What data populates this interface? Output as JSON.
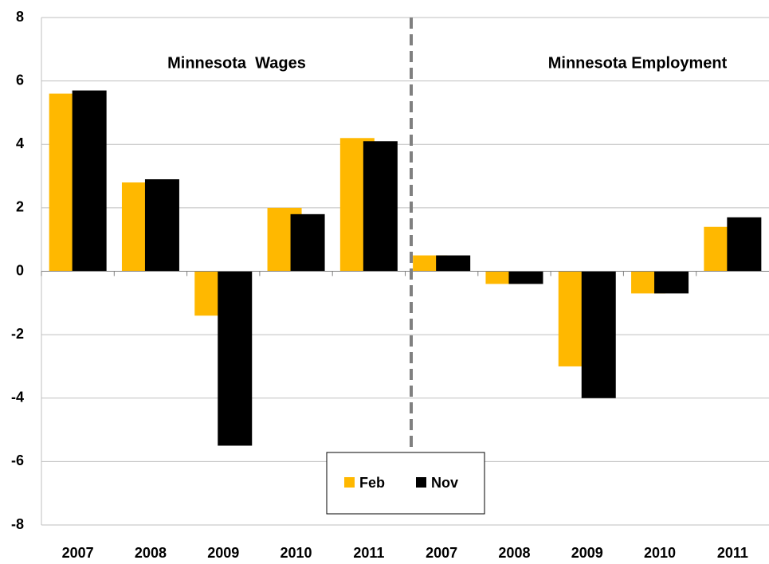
{
  "chart_data": {
    "type": "bar",
    "categories": [
      "2007",
      "2008",
      "2009",
      "2010",
      "2011",
      "2007",
      "2008",
      "2009",
      "2010",
      "2011"
    ],
    "series": [
      {
        "name": "Feb",
        "color": "#ffb800",
        "values": [
          5.6,
          2.8,
          -1.4,
          2.0,
          4.2,
          0.5,
          -0.4,
          -3.0,
          -0.7,
          1.4
        ]
      },
      {
        "name": "Nov",
        "color": "#000000",
        "values": [
          5.7,
          2.9,
          -5.5,
          1.8,
          4.1,
          0.5,
          -0.4,
          -4.0,
          -0.7,
          1.7
        ]
      }
    ],
    "annotations": [
      "Minnesota  Wages",
      "Minnesota Employment"
    ],
    "ylim": [
      -8,
      8
    ],
    "yticks": [
      -8,
      -6,
      -4,
      -2,
      0,
      2,
      4,
      6,
      8
    ],
    "grid": true
  }
}
